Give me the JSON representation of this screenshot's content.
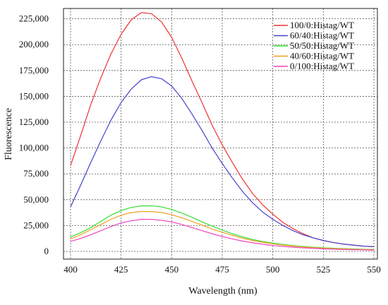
{
  "chart_data": {
    "type": "line",
    "xlabel": "Wavelength (nm)",
    "ylabel": "Fluorescence",
    "xlim": [
      400,
      550
    ],
    "ylim": [
      0,
      235000
    ],
    "x_ticks": [
      400,
      425,
      450,
      475,
      500,
      525,
      550
    ],
    "x_tick_labels": [
      "400",
      "425",
      "450",
      "475",
      "500",
      "525",
      "550"
    ],
    "y_ticks": [
      0,
      25000,
      50000,
      75000,
      100000,
      125000,
      150000,
      175000,
      200000,
      225000
    ],
    "y_tick_labels": [
      "0",
      "25,000",
      "50,000",
      "75,000",
      "100,000",
      "125,000",
      "150,000",
      "175,000",
      "200,000",
      "225,000"
    ],
    "grid": true,
    "legend_position": "top-right",
    "x": [
      400,
      405,
      410,
      415,
      420,
      425,
      430,
      435,
      440,
      445,
      450,
      455,
      460,
      465,
      470,
      475,
      480,
      485,
      490,
      495,
      500,
      505,
      510,
      515,
      520,
      525,
      530,
      535,
      540,
      545,
      550
    ],
    "series": [
      {
        "name": "100/0:Histag/WT",
        "color": "#ee3333",
        "values": [
          83000,
          112000,
          142000,
          168000,
          191000,
          210000,
          224000,
          231000,
          230000,
          222000,
          207000,
          187000,
          165000,
          144000,
          122000,
          103000,
          86000,
          70000,
          56000,
          45000,
          36000,
          28000,
          22000,
          17000,
          13000,
          10500,
          8500,
          7000,
          6000,
          5000,
          4500
        ]
      },
      {
        "name": "60/40:Histag/WT",
        "color": "#4444cc",
        "values": [
          43000,
          64000,
          86000,
          107000,
          127000,
          144000,
          157000,
          166000,
          169000,
          167000,
          160000,
          148000,
          133000,
          117000,
          100000,
          85000,
          71000,
          58000,
          47000,
          38000,
          31000,
          25000,
          20000,
          16000,
          13000,
          10500,
          8500,
          7000,
          6000,
          5000,
          4500
        ]
      },
      {
        "name": "50/50:Histag/WT",
        "color": "#33dd33",
        "values": [
          14000,
          18000,
          23000,
          29000,
          35000,
          39500,
          42500,
          44000,
          44000,
          43000,
          40500,
          37000,
          33000,
          28500,
          24500,
          20500,
          17000,
          14000,
          11500,
          9500,
          8000,
          6700,
          5600,
          4700,
          4000,
          3400,
          3000,
          2600,
          2300,
          2000,
          1800
        ]
      },
      {
        "name": "40/60:Histag/WT",
        "color": "#f0a020",
        "values": [
          12000,
          16000,
          21000,
          26000,
          31000,
          35000,
          37500,
          38500,
          38500,
          37500,
          35500,
          32500,
          29000,
          25500,
          21500,
          18500,
          15500,
          12700,
          10500,
          8800,
          7300,
          6100,
          5100,
          4300,
          3700,
          3100,
          2700,
          2300,
          2000,
          1800,
          1600
        ]
      },
      {
        "name": "0/100:Histag/WT",
        "color": "#ee44bb",
        "values": [
          9500,
          12500,
          16000,
          20000,
          24000,
          27500,
          29500,
          31000,
          31000,
          30000,
          28500,
          26000,
          23000,
          20000,
          17000,
          14500,
          12000,
          10000,
          8300,
          6900,
          5700,
          4800,
          4000,
          3400,
          2900,
          2500,
          2100,
          1800,
          1600,
          1400,
          1200
        ]
      }
    ]
  }
}
